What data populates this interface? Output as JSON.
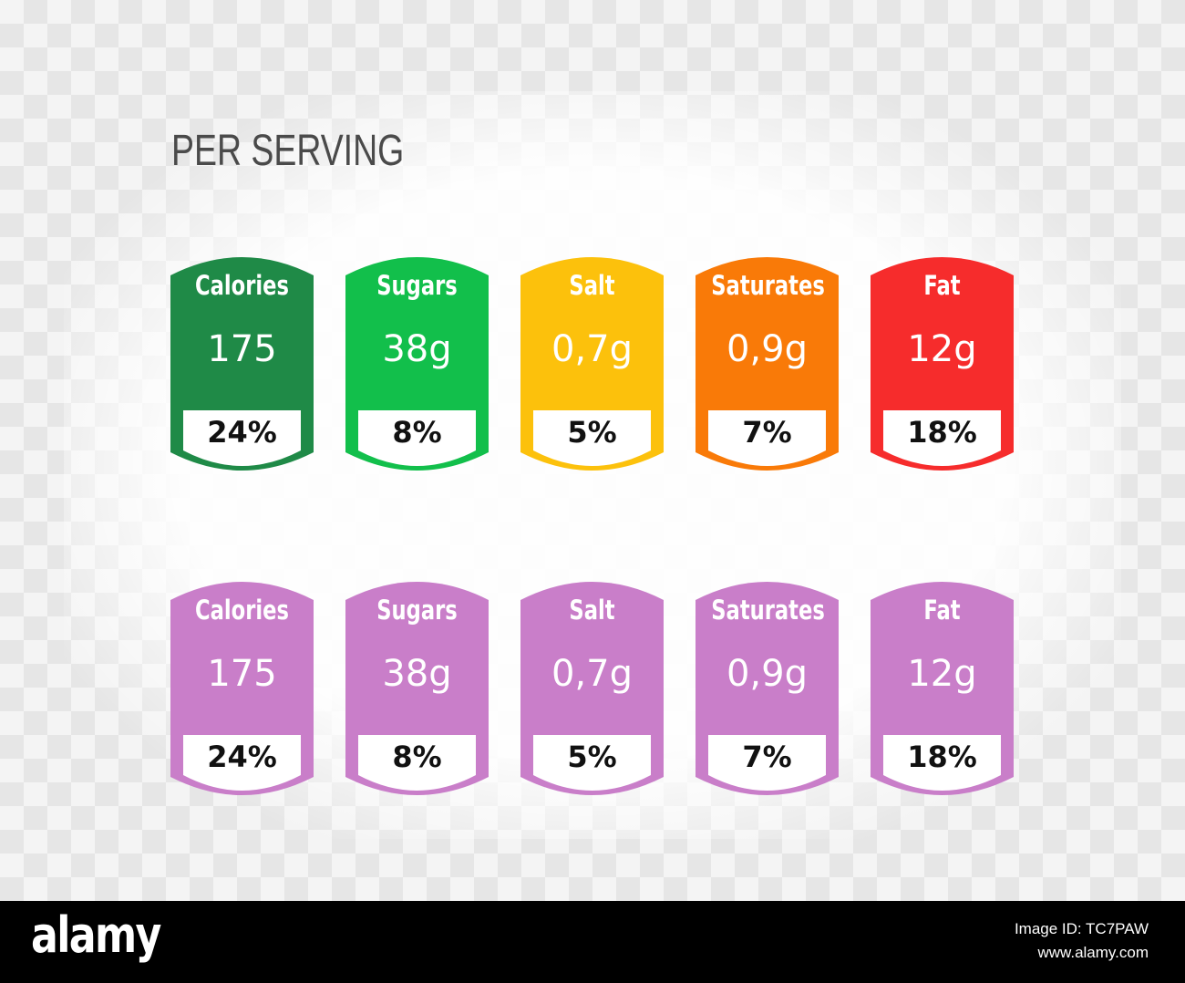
{
  "title": "PER SERVING",
  "colored_labels": [
    {
      "nutrient": "Calories",
      "amount": "175",
      "percent": "24%",
      "color": "#1f8a47"
    },
    {
      "nutrient": "Sugars",
      "amount": "38g",
      "percent": "8%",
      "color": "#12bf4b"
    },
    {
      "nutrient": "Salt",
      "amount": "0,7g",
      "percent": "5%",
      "color": "#fcc10c"
    },
    {
      "nutrient": "Saturates",
      "amount": "0,9g",
      "percent": "7%",
      "color": "#f97a08"
    },
    {
      "nutrient": "Fat",
      "amount": "12g",
      "percent": "18%",
      "color": "#f62c2c"
    }
  ],
  "purple_labels": [
    {
      "nutrient": "Calories",
      "amount": "175",
      "percent": "24%",
      "color": "#c97ec9"
    },
    {
      "nutrient": "Sugars",
      "amount": "38g",
      "percent": "8%",
      "color": "#c97ec9"
    },
    {
      "nutrient": "Salt",
      "amount": "0,7g",
      "percent": "5%",
      "color": "#c97ec9"
    },
    {
      "nutrient": "Saturates",
      "amount": "0,9g",
      "percent": "7%",
      "color": "#c97ec9"
    },
    {
      "nutrient": "Fat",
      "amount": "12g",
      "percent": "18%",
      "color": "#c97ec9"
    }
  ],
  "banner": {
    "brand": "alamy",
    "image_id": "Image ID: TC7PAW",
    "site": "www.alamy.com"
  }
}
